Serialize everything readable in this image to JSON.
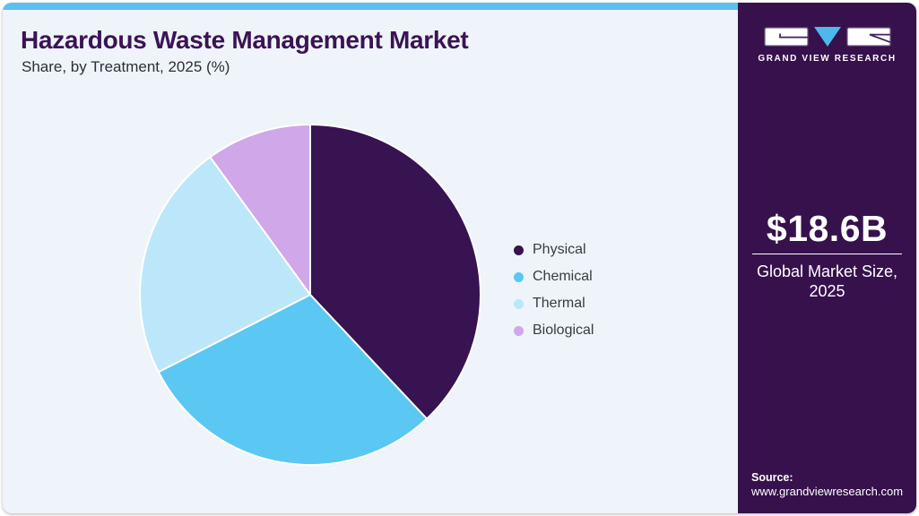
{
  "colors": {
    "page_bg": "#ffffff",
    "card_bg": "#eef4f9",
    "accent_bar": "#5cc0ed",
    "sidebar_bg": "#36114c",
    "title": "#3b1355",
    "body_text": "#3a3a44",
    "divider": "#ffffff",
    "logo_box_fill": "#ffffff",
    "logo_box_border": "#553a70",
    "logo_glyph": "#42215c",
    "logo_triangle": "#4db9ea"
  },
  "chart_data": {
    "type": "pie",
    "title": "Hazardous Waste Management Market",
    "subtitle": "Share, by Treatment, 2025 (%)",
    "units": "%",
    "start_angle_deg": 0,
    "direction": "clockwise",
    "legend_position": "right",
    "slices": [
      {
        "label": "Physical",
        "value": 38,
        "color": "#371351"
      },
      {
        "label": "Chemical",
        "value": 29.5,
        "color": "#5bc7f3"
      },
      {
        "label": "Thermal",
        "value": 22.5,
        "color": "#bce7fa"
      },
      {
        "label": "Biological",
        "value": 10,
        "color": "#d0a7e9"
      }
    ]
  },
  "sidebar": {
    "logo_caption": "GRAND VIEW RESEARCH",
    "stat": {
      "value": "$18.6B",
      "label_line1": "Global Market Size,",
      "label_line2": "2025"
    },
    "source": {
      "label": "Source:",
      "url": "www.grandviewresearch.com"
    }
  }
}
